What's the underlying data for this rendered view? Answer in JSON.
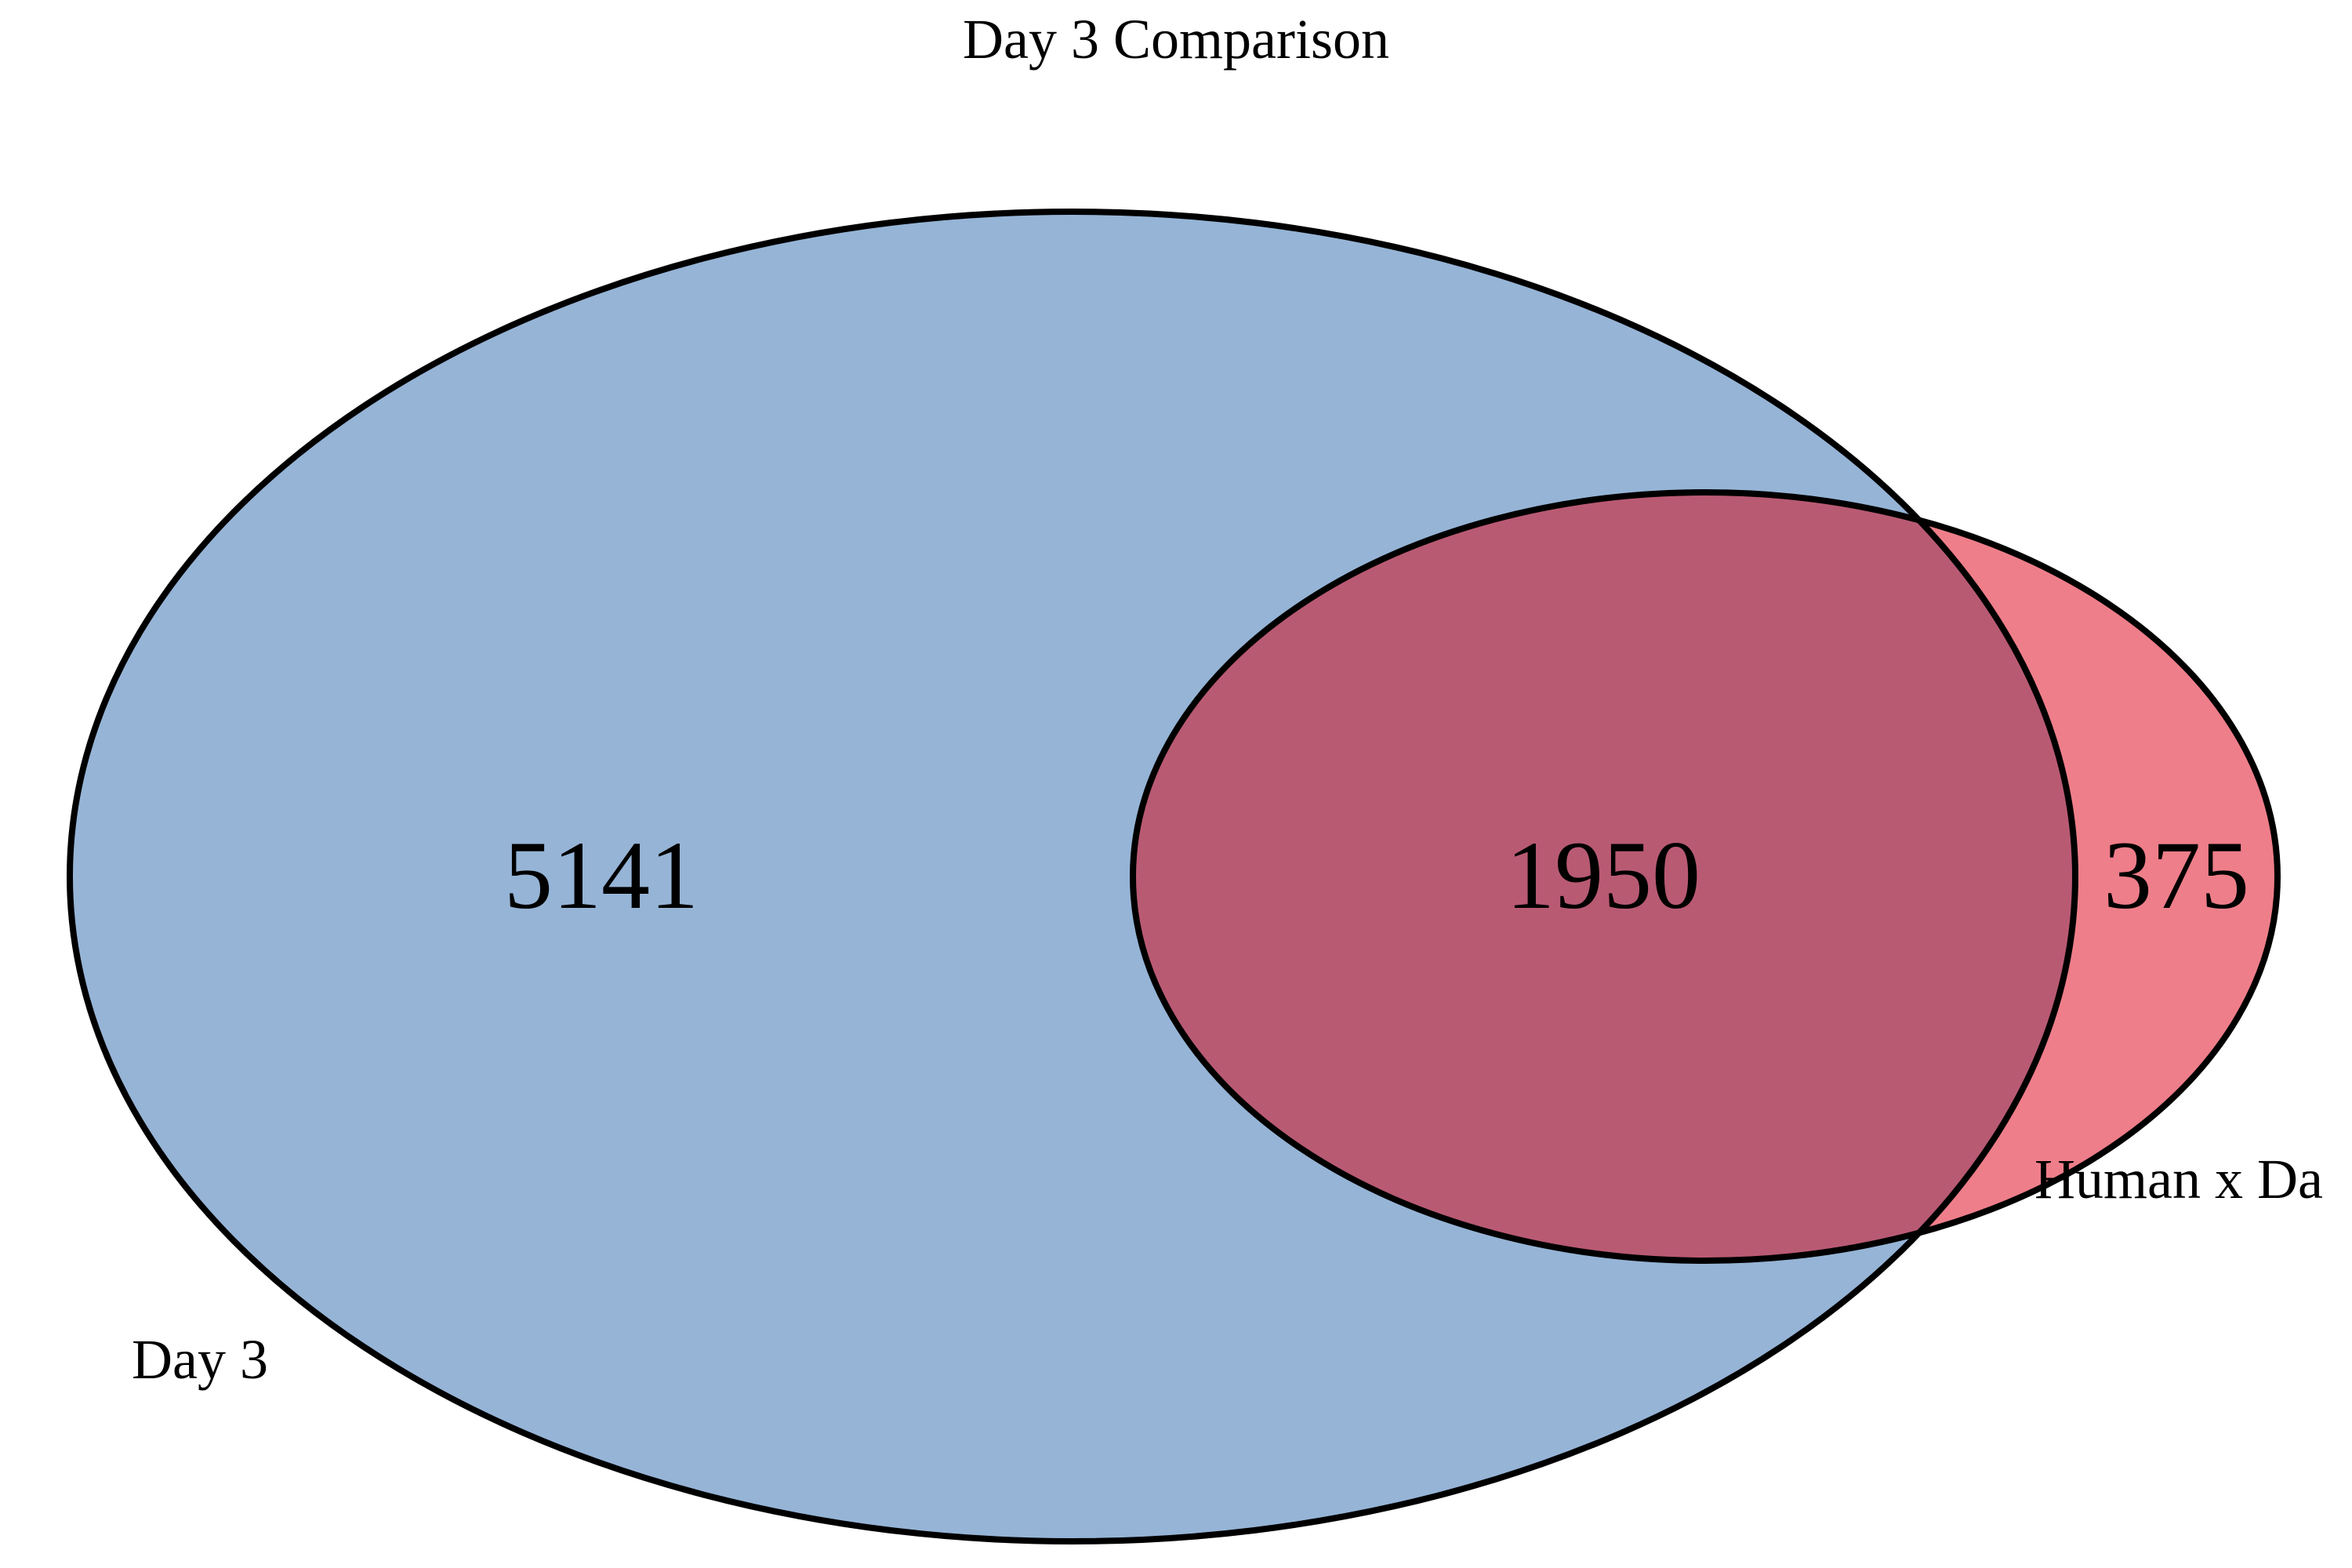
{
  "title": "Day 3 Comparison",
  "sets": [
    {
      "name": "Day 3",
      "color": "#96b4d6"
    },
    {
      "name": "Human x Da",
      "color": "#ee7e8a"
    }
  ],
  "overlap_color": "#b95a73",
  "outline_color": "#000000",
  "regions": {
    "day3_only": "5141",
    "both": "1950",
    "human_only": "375"
  }
}
